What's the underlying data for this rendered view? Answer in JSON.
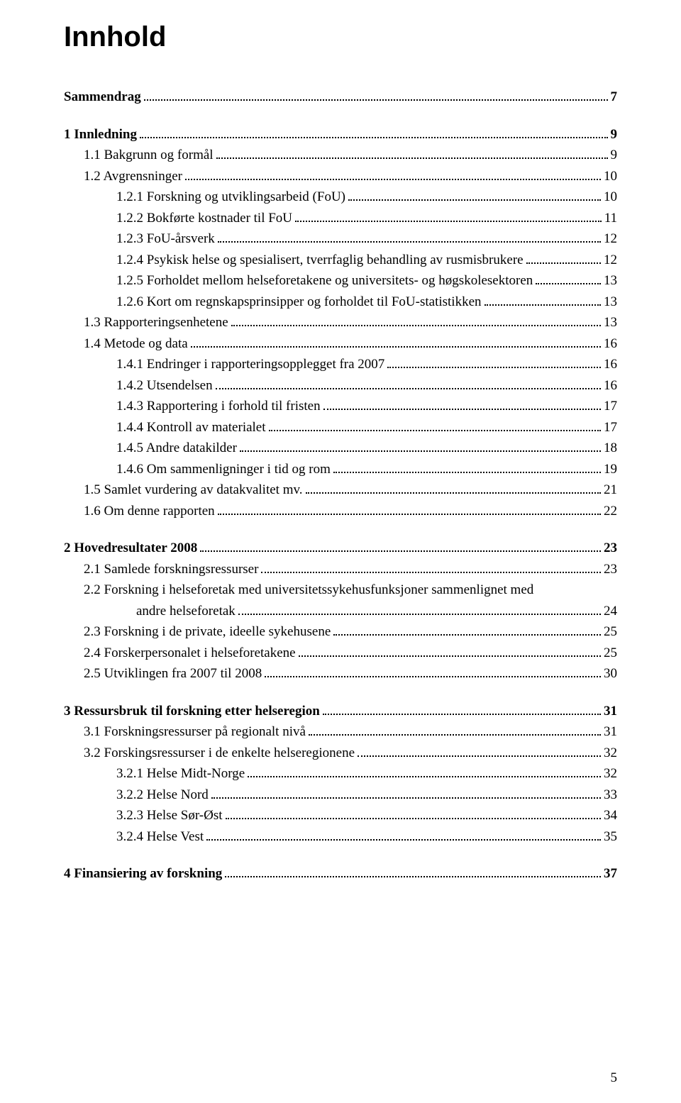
{
  "title": "Innhold",
  "page_number": "5",
  "text_color": "#000000",
  "background_color": "#ffffff",
  "title_fontsize": 40,
  "body_fontsize": 19,
  "toc": [
    {
      "level": 0,
      "label": "Sammendrag",
      "page": "7",
      "spacer_before": false
    },
    {
      "level": 0,
      "label": "1   Innledning",
      "page": "9",
      "spacer_before": true
    },
    {
      "level": 1,
      "label": "1.1 Bakgrunn og formål",
      "page": "9",
      "spacer_before": false
    },
    {
      "level": 1,
      "label": "1.2 Avgrensninger",
      "page": "10",
      "spacer_before": false
    },
    {
      "level": 2,
      "label": "1.2.1 Forskning og utviklingsarbeid (FoU)",
      "page": "10",
      "spacer_before": false
    },
    {
      "level": 2,
      "label": "1.2.2 Bokførte kostnader til FoU",
      "page": "11",
      "spacer_before": false
    },
    {
      "level": 2,
      "label": "1.2.3 FoU-årsverk",
      "page": "12",
      "spacer_before": false
    },
    {
      "level": 2,
      "label": "1.2.4 Psykisk helse og spesialisert, tverrfaglig behandling av rusmisbrukere",
      "page": "12",
      "spacer_before": false
    },
    {
      "level": 2,
      "label": "1.2.5 Forholdet mellom helseforetakene og universitets- og høgskolesektoren",
      "page": "13",
      "spacer_before": false
    },
    {
      "level": 2,
      "label": "1.2.6 Kort om regnskapsprinsipper og forholdet til FoU-statistikken",
      "page": "13",
      "spacer_before": false
    },
    {
      "level": 1,
      "label": "1.3 Rapporteringsenhetene",
      "page": "13",
      "spacer_before": false
    },
    {
      "level": 1,
      "label": "1.4 Metode og data",
      "page": "16",
      "spacer_before": false
    },
    {
      "level": 2,
      "label": "1.4.1 Endringer i rapporteringsopplegget fra 2007",
      "page": "16",
      "spacer_before": false
    },
    {
      "level": 2,
      "label": "1.4.2 Utsendelsen",
      "page": "16",
      "spacer_before": false
    },
    {
      "level": 2,
      "label": "1.4.3 Rapportering i forhold til fristen",
      "page": "17",
      "spacer_before": false
    },
    {
      "level": 2,
      "label": "1.4.4 Kontroll av materialet",
      "page": "17",
      "spacer_before": false
    },
    {
      "level": 2,
      "label": "1.4.5 Andre datakilder",
      "page": "18",
      "spacer_before": false
    },
    {
      "level": 2,
      "label": "1.4.6 Om sammenligninger i tid og rom",
      "page": "19",
      "spacer_before": false
    },
    {
      "level": 1,
      "label": "1.5 Samlet vurdering av datakvalitet mv.",
      "page": "21",
      "spacer_before": false
    },
    {
      "level": 1,
      "label": "1.6 Om denne rapporten",
      "page": "22",
      "spacer_before": false
    },
    {
      "level": 0,
      "label": "2   Hovedresultater 2008",
      "page": "23",
      "spacer_before": true
    },
    {
      "level": 1,
      "label": "2.1 Samlede forskningsressurser",
      "page": "23",
      "spacer_before": false
    },
    {
      "level": 1,
      "label": "2.2 Forskning i helseforetak med universitetssykehusfunksjoner sammenlignet med",
      "page": "",
      "spacer_before": false,
      "no_dots": true
    },
    {
      "level": "indent",
      "label": "andre helseforetak",
      "page": "24",
      "spacer_before": false
    },
    {
      "level": 1,
      "label": "2.3 Forskning i de private, ideelle sykehusene",
      "page": "25",
      "spacer_before": false
    },
    {
      "level": 1,
      "label": "2.4 Forskerpersonalet i helseforetakene",
      "page": "25",
      "spacer_before": false
    },
    {
      "level": 1,
      "label": "2.5 Utviklingen fra 2007 til 2008",
      "page": "30",
      "spacer_before": false
    },
    {
      "level": 0,
      "label": "3   Ressursbruk til forskning etter helseregion",
      "page": "31",
      "spacer_before": true
    },
    {
      "level": 1,
      "label": "3.1 Forskningsressurser på regionalt nivå",
      "page": "31",
      "spacer_before": false
    },
    {
      "level": 1,
      "label": "3.2 Forskingsressurser i de enkelte helseregionene",
      "page": "32",
      "spacer_before": false
    },
    {
      "level": 2,
      "label": "3.2.1 Helse Midt-Norge",
      "page": "32",
      "spacer_before": false
    },
    {
      "level": 2,
      "label": "3.2.2 Helse Nord",
      "page": "33",
      "spacer_before": false
    },
    {
      "level": 2,
      "label": "3.2.3 Helse Sør-Øst",
      "page": "34",
      "spacer_before": false
    },
    {
      "level": 2,
      "label": "3.2.4 Helse Vest",
      "page": "35",
      "spacer_before": false
    },
    {
      "level": 0,
      "label": "4   Finansiering av forskning",
      "page": "37",
      "spacer_before": true
    }
  ]
}
